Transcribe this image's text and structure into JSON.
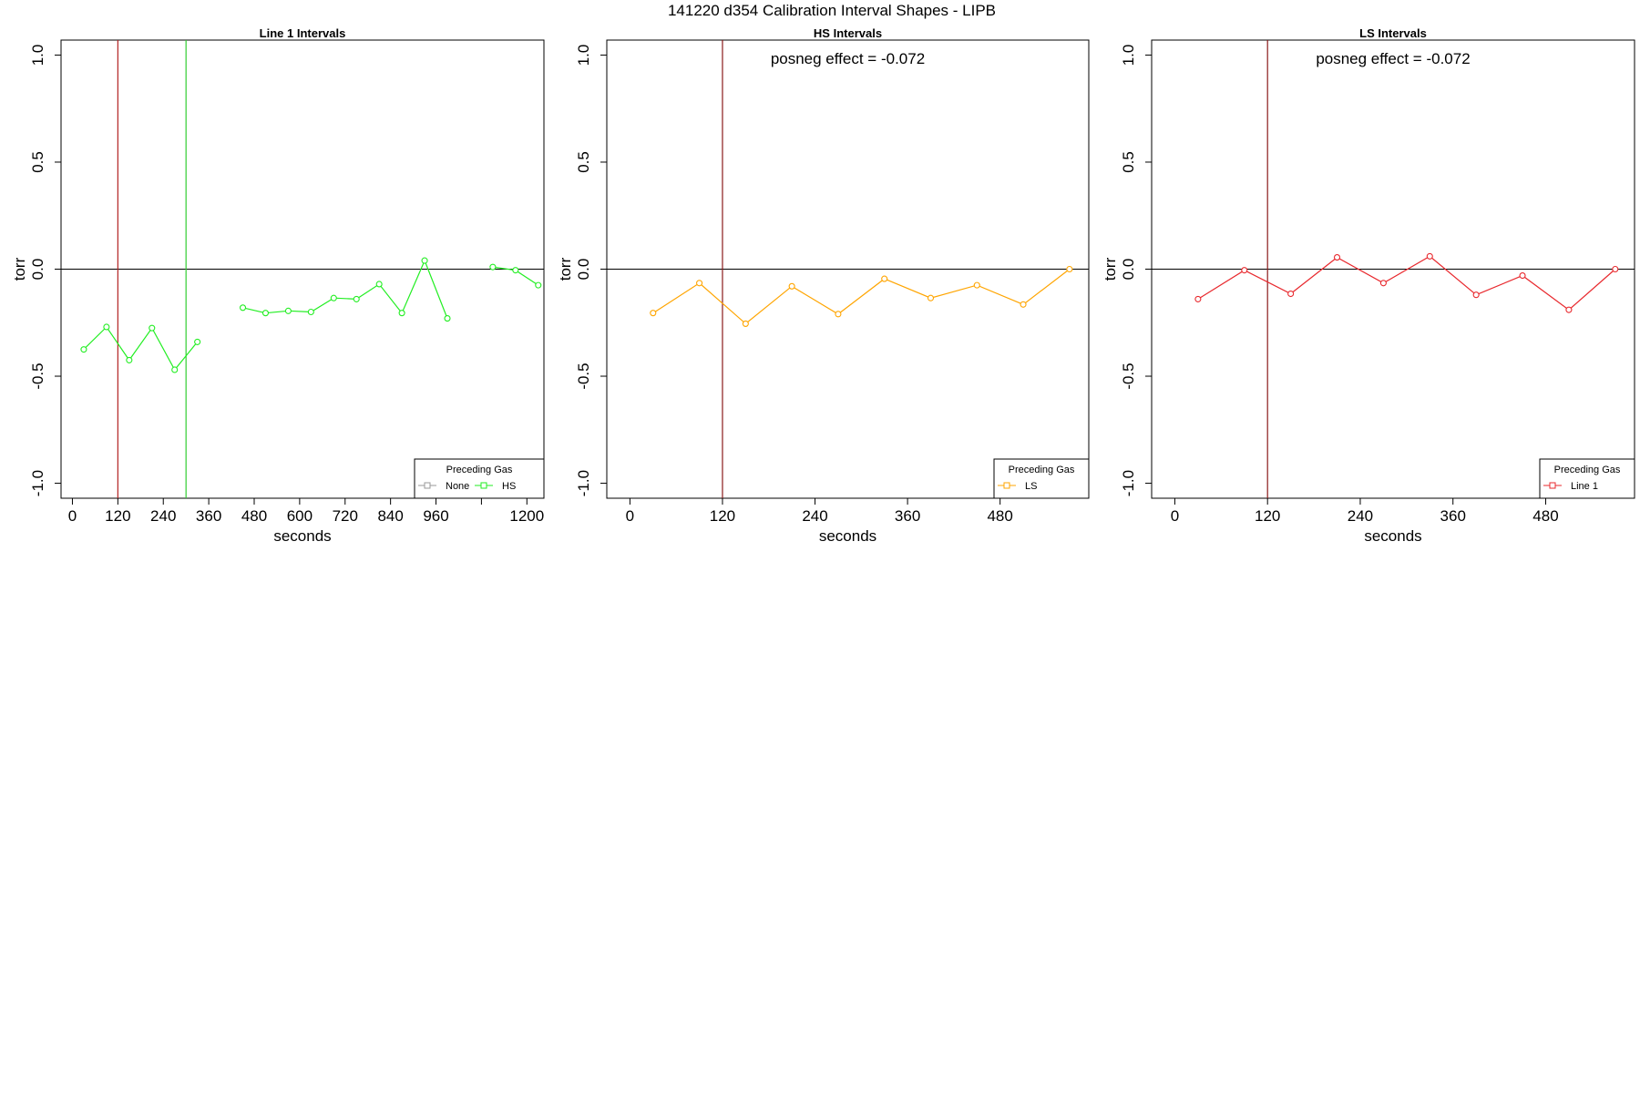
{
  "figure": {
    "title": "141220   d354   Calibration Interval Shapes - LIPB"
  },
  "chart_data": [
    {
      "type": "line",
      "title": "Line 1 Intervals",
      "xlabel": "seconds",
      "ylabel": "torr",
      "xlim": [
        -30,
        1245
      ],
      "ylim": [
        -1.07,
        1.07
      ],
      "xticks": [
        0,
        120,
        240,
        360,
        480,
        600,
        720,
        840,
        960,
        1080,
        1200
      ],
      "xtick_labels": [
        "0",
        "120",
        "240",
        "360",
        "480",
        "600",
        "720",
        "840",
        "960",
        "",
        "1200"
      ],
      "yticks": [
        -1.0,
        -0.5,
        0.0,
        0.5,
        1.0
      ],
      "ytick_labels": [
        "-1.0",
        "-0.5",
        "0.0",
        "0.5",
        "1.0"
      ],
      "hline": 0,
      "vlines": [
        {
          "x": 120,
          "color": "#b22222"
        },
        {
          "x": 300,
          "color": "#32cd32"
        }
      ],
      "annotation": "",
      "legend": {
        "title": "Preceding Gas",
        "position": "bottom-right",
        "entries": [
          {
            "label": "None",
            "color": "#999999"
          },
          {
            "label": "HS",
            "color": "#22ee22"
          }
        ]
      },
      "series": [
        {
          "name": "HS",
          "color": "#22ee22",
          "segments": [
            {
              "x": [
                30,
                90,
                150,
                210,
                270,
                330
              ],
              "y": [
                -0.375,
                -0.27,
                -0.425,
                -0.275,
                -0.47,
                -0.34
              ]
            },
            {
              "x": [
                450,
                510,
                570,
                630,
                690,
                750,
                810,
                870,
                930,
                990
              ],
              "y": [
                -0.18,
                -0.205,
                -0.195,
                -0.2,
                -0.135,
                -0.14,
                -0.07,
                -0.205,
                0.04,
                -0.23
              ]
            },
            {
              "x": [
                1110,
                1170,
                1230
              ],
              "y": [
                0.01,
                -0.005,
                -0.075
              ]
            }
          ]
        }
      ]
    },
    {
      "type": "line",
      "title": "HS Intervals",
      "xlabel": "seconds",
      "ylabel": "torr",
      "xlim": [
        -30,
        595
      ],
      "ylim": [
        -1.07,
        1.07
      ],
      "xticks": [
        0,
        120,
        240,
        360,
        480
      ],
      "xtick_labels": [
        "0",
        "120",
        "240",
        "360",
        "480"
      ],
      "yticks": [
        -1.0,
        -0.5,
        0.0,
        0.5,
        1.0
      ],
      "ytick_labels": [
        "-1.0",
        "-0.5",
        "0.0",
        "0.5",
        "1.0"
      ],
      "hline": 0,
      "vlines": [
        {
          "x": 120,
          "color": "#8b1a1a"
        }
      ],
      "annotation": "posneg effect = -0.072",
      "legend": {
        "title": "Preceding Gas",
        "position": "bottom-right",
        "entries": [
          {
            "label": "LS",
            "color": "#ffa500"
          }
        ]
      },
      "series": [
        {
          "name": "LS",
          "color": "#ffa500",
          "segments": [
            {
              "x": [
                30,
                90,
                150,
                210,
                270,
                330,
                390,
                450,
                510,
                570
              ],
              "y": [
                -0.205,
                -0.065,
                -0.255,
                -0.08,
                -0.21,
                -0.045,
                -0.135,
                -0.075,
                -0.165,
                0.0
              ]
            }
          ]
        }
      ]
    },
    {
      "type": "line",
      "title": "LS Intervals",
      "xlabel": "seconds",
      "ylabel": "torr",
      "xlim": [
        -30,
        595
      ],
      "ylim": [
        -1.07,
        1.07
      ],
      "xticks": [
        0,
        120,
        240,
        360,
        480
      ],
      "xtick_labels": [
        "0",
        "120",
        "240",
        "360",
        "480"
      ],
      "yticks": [
        -1.0,
        -0.5,
        0.0,
        0.5,
        1.0
      ],
      "ytick_labels": [
        "-1.0",
        "-0.5",
        "0.0",
        "0.5",
        "1.0"
      ],
      "hline": 0,
      "vlines": [
        {
          "x": 120,
          "color": "#8b1a1a"
        }
      ],
      "annotation": "posneg effect = -0.072",
      "legend": {
        "title": "Preceding Gas",
        "position": "bottom-right",
        "entries": [
          {
            "label": "Line 1",
            "color": "#e8282d"
          }
        ]
      },
      "series": [
        {
          "name": "Line 1",
          "color": "#e8282d",
          "segments": [
            {
              "x": [
                30,
                90,
                150,
                210,
                270,
                330,
                390,
                450,
                510,
                570
              ],
              "y": [
                -0.14,
                -0.005,
                -0.115,
                0.055,
                -0.065,
                0.06,
                -0.12,
                -0.03,
                -0.19,
                0.0
              ]
            }
          ]
        }
      ]
    }
  ]
}
